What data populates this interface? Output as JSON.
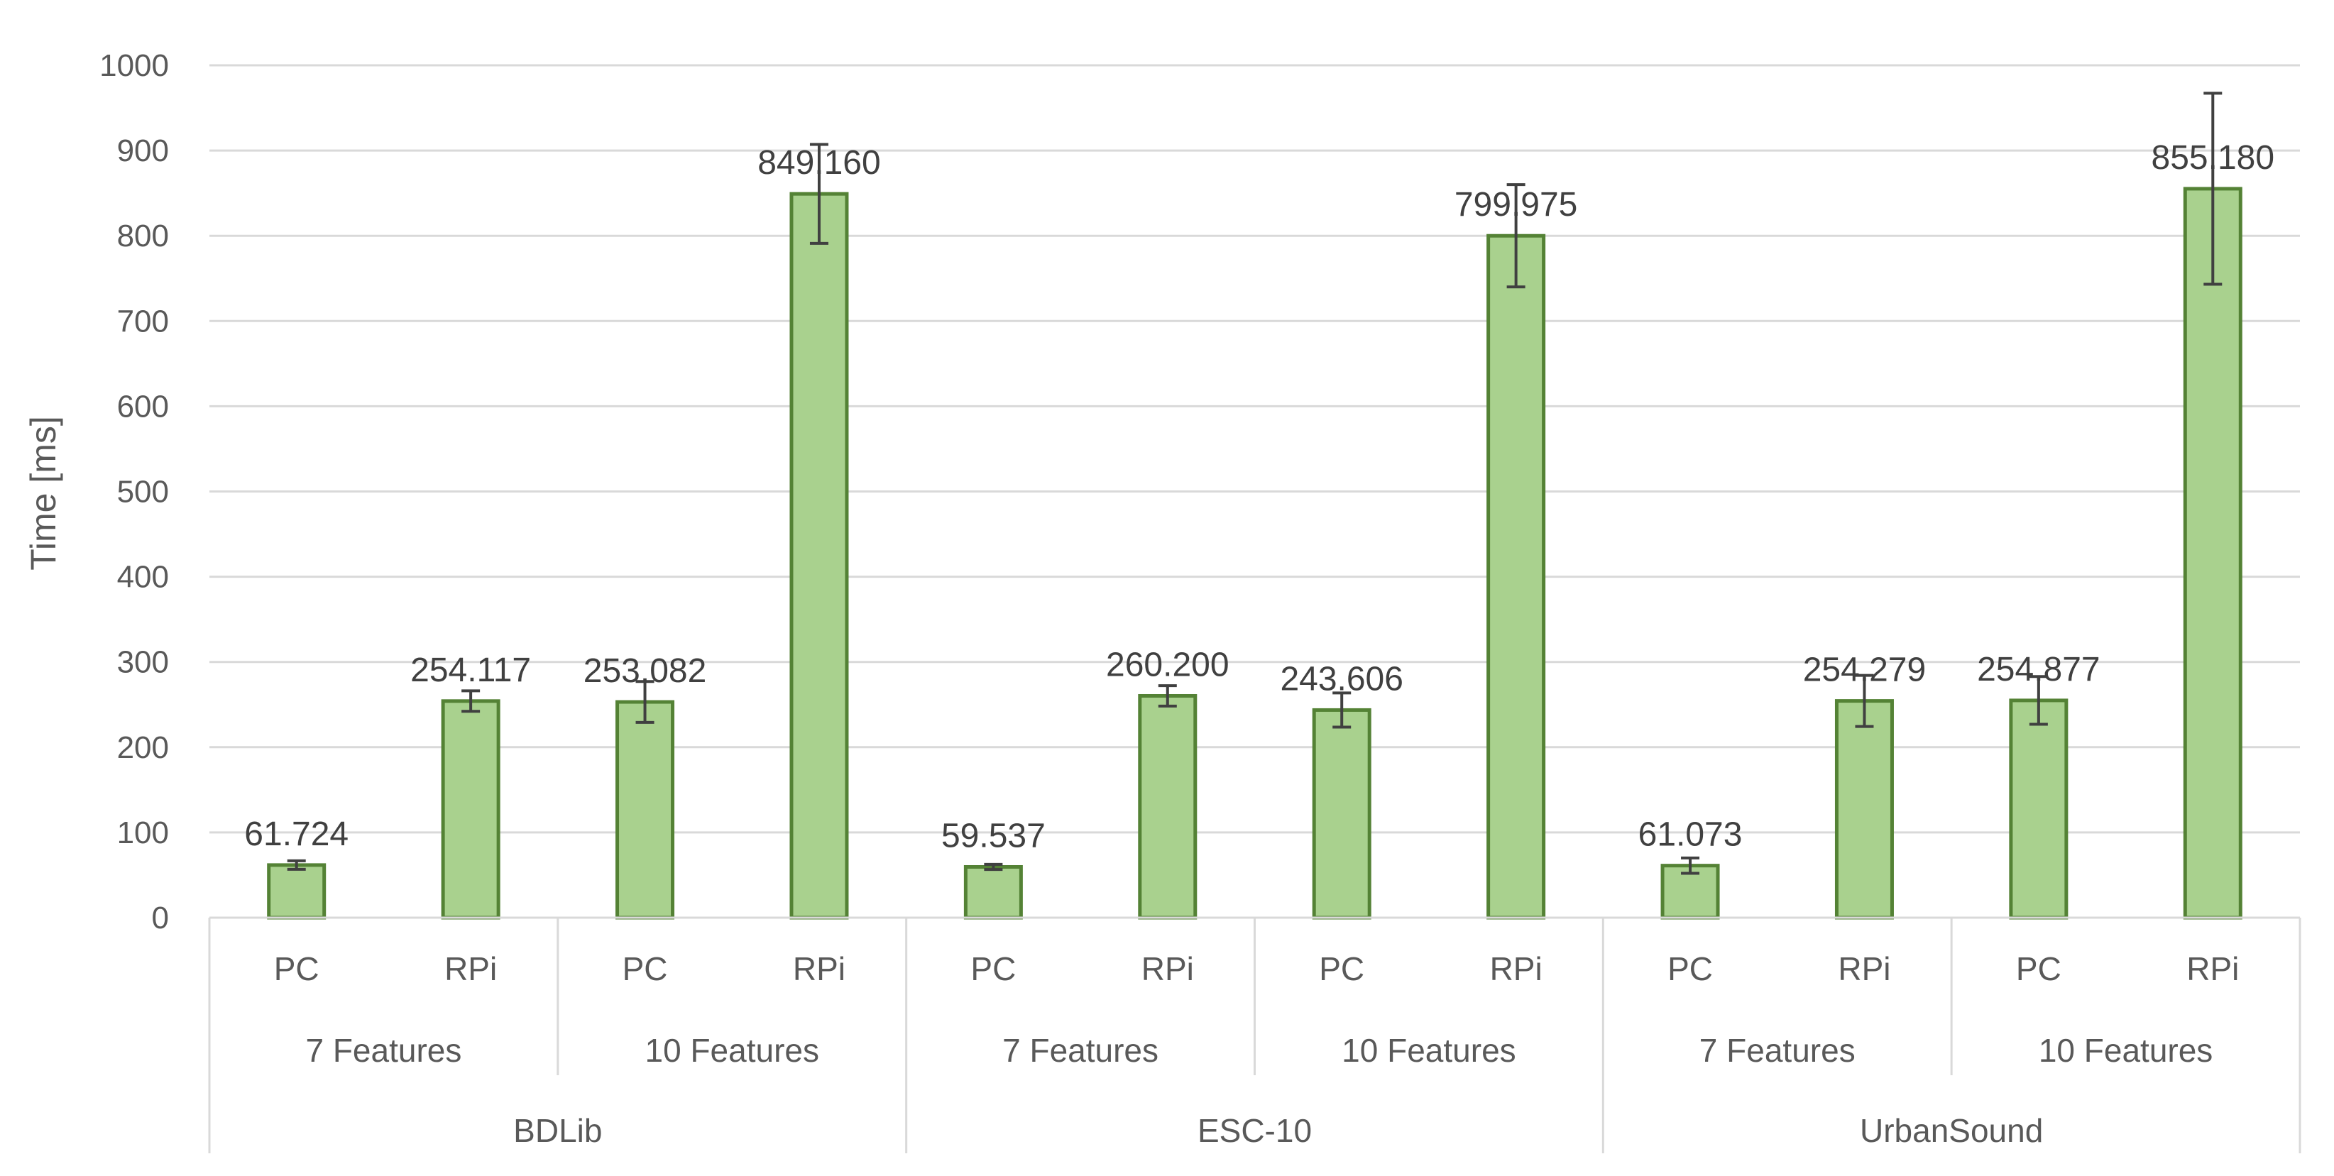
{
  "chart_data": {
    "type": "bar",
    "ylabel": "Time  [ms]",
    "ylim": [
      0,
      1000
    ],
    "yticks": [
      0,
      100,
      200,
      300,
      400,
      500,
      600,
      700,
      800,
      900,
      1000
    ],
    "grid": true,
    "bar_color": "#a9d18e",
    "bar_border": "#548235",
    "error_color": "#404040",
    "groups": [
      {
        "dataset": "BDLib",
        "subgroups": [
          {
            "label": "7 Features",
            "bars": [
              {
                "platform": "PC",
                "value": 61.724,
                "label": "61.724",
                "err": 5
              },
              {
                "platform": "RPi",
                "value": 254.117,
                "label": "254.117",
                "err": 12
              }
            ]
          },
          {
            "label": "10 Features",
            "bars": [
              {
                "platform": "PC",
                "value": 253.082,
                "label": "253.082",
                "err": 24
              },
              {
                "platform": "RPi",
                "value": 849.16,
                "label": "849.160",
                "err": 58
              }
            ]
          }
        ]
      },
      {
        "dataset": "ESC-10",
        "subgroups": [
          {
            "label": "7 Features",
            "bars": [
              {
                "platform": "PC",
                "value": 59.537,
                "label": "59.537",
                "err": 3
              },
              {
                "platform": "RPi",
                "value": 260.2,
                "label": "260.200",
                "err": 12
              }
            ]
          },
          {
            "label": "10 Features",
            "bars": [
              {
                "platform": "PC",
                "value": 243.606,
                "label": "243.606",
                "err": 20
              },
              {
                "platform": "RPi",
                "value": 799.975,
                "label": "799.975",
                "err": 60
              }
            ]
          }
        ]
      },
      {
        "dataset": "UrbanSound",
        "subgroups": [
          {
            "label": "7 Features",
            "bars": [
              {
                "platform": "PC",
                "value": 61.073,
                "label": "61.073",
                "err": 9
              },
              {
                "platform": "RPi",
                "value": 254.279,
                "label": "254.279",
                "err": 30
              }
            ]
          },
          {
            "label": "10 Features",
            "bars": [
              {
                "platform": "PC",
                "value": 254.877,
                "label": "254.877",
                "err": 28
              },
              {
                "platform": "RPi",
                "value": 855.18,
                "label": "855.180",
                "err": 112
              }
            ]
          }
        ]
      }
    ]
  }
}
